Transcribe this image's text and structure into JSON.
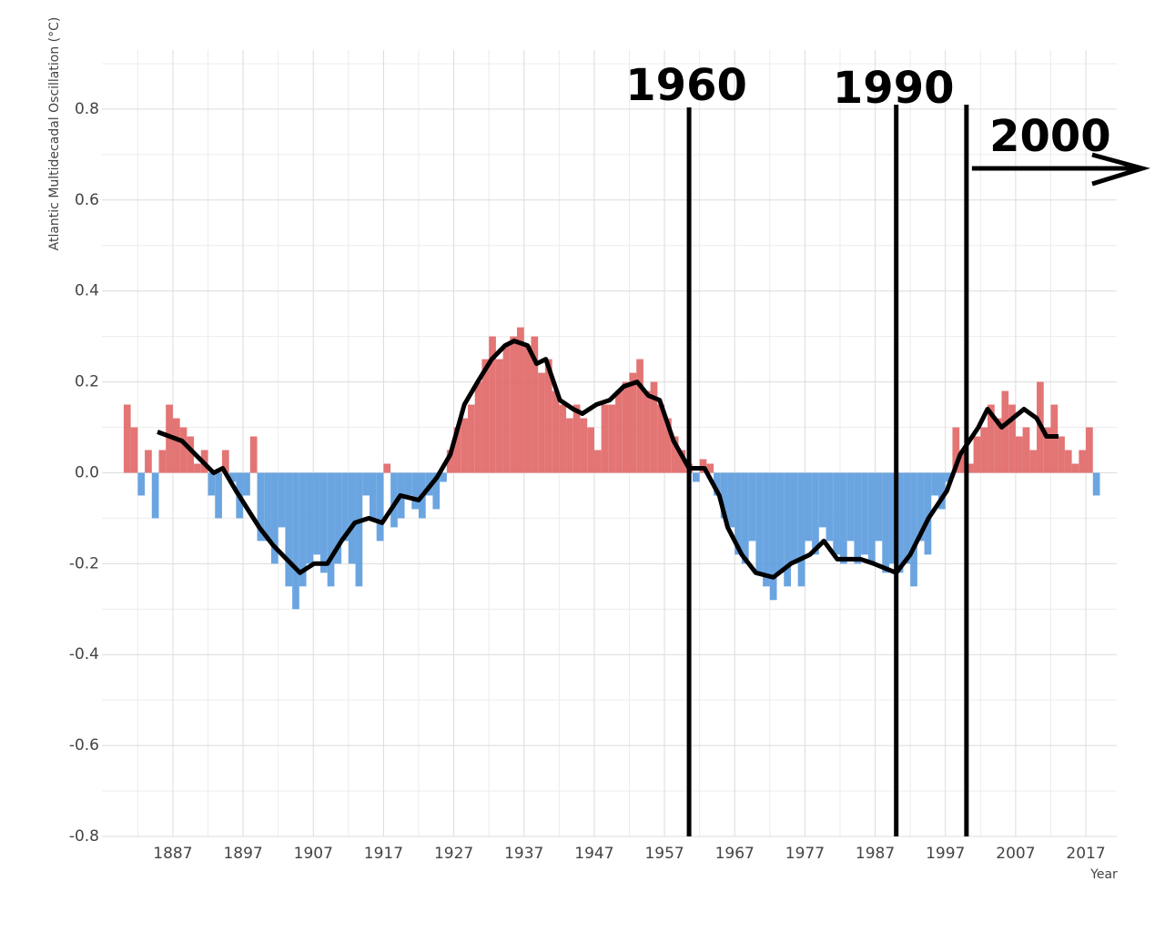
{
  "chart_data": {
    "type": "bar",
    "y_label": "Atlantic Multidecadal Oscillation (°C)",
    "x_label": "Year",
    "x": [
      1880,
      1881,
      1882,
      1883,
      1884,
      1885,
      1886,
      1887,
      1888,
      1889,
      1890,
      1891,
      1892,
      1893,
      1894,
      1895,
      1896,
      1897,
      1898,
      1899,
      1900,
      1901,
      1902,
      1903,
      1904,
      1905,
      1906,
      1907,
      1908,
      1909,
      1910,
      1911,
      1912,
      1913,
      1914,
      1915,
      1916,
      1917,
      1918,
      1919,
      1920,
      1921,
      1922,
      1923,
      1924,
      1925,
      1926,
      1927,
      1928,
      1929,
      1930,
      1931,
      1932,
      1933,
      1934,
      1935,
      1936,
      1937,
      1938,
      1939,
      1940,
      1941,
      1942,
      1943,
      1944,
      1945,
      1946,
      1947,
      1948,
      1949,
      1950,
      1951,
      1952,
      1953,
      1954,
      1955,
      1956,
      1957,
      1958,
      1959,
      1960,
      1961,
      1962,
      1963,
      1964,
      1965,
      1966,
      1967,
      1968,
      1969,
      1970,
      1971,
      1972,
      1973,
      1974,
      1975,
      1976,
      1977,
      1978,
      1979,
      1980,
      1981,
      1982,
      1983,
      1984,
      1985,
      1986,
      1987,
      1988,
      1989,
      1990,
      1991,
      1992,
      1993,
      1994,
      1995,
      1996,
      1997,
      1998,
      1999,
      2000,
      2001,
      2002,
      2003,
      2004,
      2005,
      2006,
      2007,
      2008,
      2009,
      2010,
      2011,
      2012,
      2013,
      2014,
      2015,
      2016,
      2017,
      2018
    ],
    "values": [
      0.15,
      0.1,
      -0.05,
      0.05,
      -0.1,
      0.05,
      0.15,
      0.12,
      0.1,
      0.08,
      0.02,
      0.05,
      -0.05,
      -0.1,
      0.05,
      -0.02,
      -0.1,
      -0.05,
      0.08,
      -0.15,
      -0.15,
      -0.2,
      -0.12,
      -0.25,
      -0.3,
      -0.25,
      -0.2,
      -0.18,
      -0.22,
      -0.25,
      -0.2,
      -0.15,
      -0.2,
      -0.25,
      -0.05,
      -0.1,
      -0.15,
      0.02,
      -0.12,
      -0.1,
      -0.05,
      -0.08,
      -0.1,
      -0.05,
      -0.08,
      -0.02,
      0.05,
      0.1,
      0.12,
      0.15,
      0.2,
      0.25,
      0.3,
      0.25,
      0.28,
      0.3,
      0.32,
      0.28,
      0.3,
      0.22,
      0.25,
      0.18,
      0.15,
      0.12,
      0.15,
      0.12,
      0.1,
      0.05,
      0.15,
      0.15,
      0.18,
      0.2,
      0.22,
      0.25,
      0.18,
      0.2,
      0.15,
      0.12,
      0.08,
      0.05,
      0.02,
      -0.02,
      0.03,
      0.02,
      -0.05,
      -0.1,
      -0.12,
      -0.18,
      -0.2,
      -0.15,
      -0.22,
      -0.25,
      -0.28,
      -0.22,
      -0.25,
      -0.2,
      -0.25,
      -0.15,
      -0.18,
      -0.12,
      -0.15,
      -0.18,
      -0.2,
      -0.15,
      -0.2,
      -0.18,
      -0.2,
      -0.15,
      -0.22,
      -0.2,
      -0.22,
      -0.2,
      -0.25,
      -0.15,
      -0.18,
      -0.05,
      -0.08,
      -0.02,
      0.1,
      0.05,
      0.02,
      0.08,
      0.1,
      0.15,
      0.12,
      0.18,
      0.15,
      0.08,
      0.1,
      0.05,
      0.2,
      0.1,
      0.15,
      0.08,
      0.05,
      0.02,
      0.05,
      0.1,
      -0.05
    ],
    "colors": {
      "positive": "#e06666",
      "negative": "#5b9bde"
    },
    "smooth": {
      "color": "#000000",
      "x": [
        1884.8,
        1888.3,
        1892.8,
        1894.1,
        1896,
        1899.3,
        1901.3,
        1903.2,
        1905.1,
        1907.1,
        1909,
        1911,
        1912.9,
        1914.9,
        1916.8,
        1919.4,
        1922,
        1924.6,
        1926.5,
        1928.5,
        1930.4,
        1932.4,
        1934.3,
        1935.6,
        1937.5,
        1938.8,
        1940.1,
        1942.1,
        1944,
        1945.3,
        1947.3,
        1949.2,
        1951.2,
        1953.1,
        1954.7,
        1956.3,
        1958.3,
        1960.5,
        1962.7,
        1964.8,
        1966,
        1968,
        1970,
        1972.5,
        1975,
        1977.7,
        1979.7,
        1981.6,
        1984.9,
        1986.8,
        1990,
        1992,
        1994.6,
        1997.2,
        1999.1,
        2001.7,
        2003,
        2005,
        2008.2,
        2010,
        2011.4,
        2013.1
      ],
      "values": [
        0.09,
        0.07,
        0.0,
        0.01,
        -0.04,
        -0.12,
        -0.16,
        -0.19,
        -0.22,
        -0.2,
        -0.2,
        -0.15,
        -0.11,
        -0.1,
        -0.11,
        -0.05,
        -0.06,
        -0.01,
        0.04,
        0.15,
        0.2,
        0.25,
        0.28,
        0.29,
        0.28,
        0.24,
        0.25,
        0.16,
        0.14,
        0.13,
        0.15,
        0.16,
        0.19,
        0.2,
        0.17,
        0.16,
        0.07,
        0.01,
        0.01,
        -0.05,
        -0.12,
        -0.18,
        -0.22,
        -0.23,
        -0.2,
        -0.18,
        -0.15,
        -0.19,
        -0.19,
        -0.2,
        -0.22,
        -0.18,
        -0.1,
        -0.04,
        0.04,
        0.1,
        0.14,
        0.1,
        0.14,
        0.12,
        0.08,
        0.08
      ]
    },
    "annotations": [
      {
        "text": "1960",
        "x": 1960.5
      },
      {
        "text": "1990",
        "x": 1990
      },
      {
        "text": "2000",
        "x": 2000,
        "arrow": "right"
      }
    ],
    "xlim": [
      1876.9,
      2021.4
    ],
    "ylim": [
      -0.8,
      0.93
    ],
    "xticks": [
      1887,
      1897,
      1907,
      1917,
      1927,
      1937,
      1947,
      1957,
      1967,
      1977,
      1987,
      1997,
      2007,
      2017
    ],
    "yticks": [
      -0.8,
      -0.6,
      -0.4,
      -0.2,
      {
        "value": 0,
        "label": "0.0"
      },
      0.2,
      0.4,
      0.6,
      0.8
    ],
    "grid": true
  }
}
